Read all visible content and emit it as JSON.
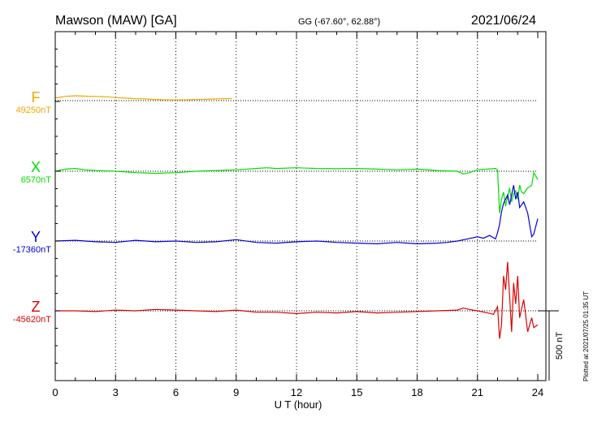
{
  "header": {
    "station": "Mawson (MAW)  [GA]",
    "coords": "GG (-67.60°,  62.88°)",
    "date": "2021/06/24"
  },
  "footer": {
    "plotted": "Plotted at 2021/07/25 01:35 UT"
  },
  "chart_data": {
    "type": "line",
    "xlabel": "U T (hour)",
    "xlim": [
      0,
      24
    ],
    "xticks": [
      0,
      3,
      6,
      9,
      12,
      15,
      18,
      21,
      24
    ],
    "grid": true,
    "scale_label": "500 nT",
    "scale_nT": 500,
    "series": [
      {
        "name": "F",
        "baseline_label": "49250nT",
        "color": "#f0a800",
        "x": [
          0,
          0.5,
          1,
          1.5,
          2,
          2.5,
          3,
          3.5,
          4,
          4.5,
          5,
          5.5,
          6,
          6.5,
          7,
          7.5,
          8,
          8.5,
          8.8
        ],
        "y": [
          20,
          30,
          35,
          32,
          30,
          28,
          22,
          18,
          14,
          12,
          8,
          6,
          5,
          6,
          8,
          10,
          12,
          14,
          15
        ]
      },
      {
        "name": "X",
        "baseline_label": "6570nT",
        "color": "#00dd00",
        "x": [
          0,
          0.5,
          1,
          1.5,
          2,
          3,
          4,
          5,
          6,
          7,
          8,
          9,
          10,
          10.5,
          11,
          12,
          13,
          14,
          15,
          16,
          17,
          18,
          19,
          20,
          20.3,
          20.6,
          21,
          21.5,
          21.9,
          22,
          22.1,
          22.2,
          22.3,
          22.4,
          22.5,
          22.6,
          22.7,
          22.8,
          22.9,
          23,
          23.1,
          23.2,
          23.3,
          23.5,
          23.7,
          23.8,
          24
        ],
        "y": [
          0,
          15,
          20,
          10,
          5,
          0,
          -10,
          -15,
          -10,
          0,
          5,
          10,
          20,
          25,
          20,
          25,
          20,
          18,
          20,
          15,
          10,
          15,
          5,
          0,
          -20,
          -10,
          10,
          15,
          20,
          10,
          -300,
          -200,
          -150,
          -250,
          -180,
          -120,
          -220,
          -160,
          -140,
          -200,
          -100,
          -150,
          -160,
          -120,
          -100,
          -10,
          -60
        ]
      },
      {
        "name": "Y",
        "baseline_label": "-17360nT",
        "color": "#0000dd",
        "x": [
          0,
          1,
          2,
          3,
          4,
          5,
          6,
          7,
          8,
          9,
          10,
          11,
          12,
          13,
          14,
          15,
          16,
          17,
          18,
          19,
          19.5,
          20,
          20.5,
          21,
          21.3,
          21.6,
          21.9,
          22,
          22.1,
          22.2,
          22.3,
          22.5,
          22.6,
          22.8,
          22.9,
          23,
          23.1,
          23.3,
          23.5,
          23.7,
          23.8,
          24
        ],
        "y": [
          0,
          5,
          -5,
          -10,
          5,
          -5,
          0,
          -10,
          -5,
          10,
          -10,
          -15,
          -5,
          0,
          -10,
          -15,
          -20,
          -10,
          -20,
          -15,
          -10,
          0,
          15,
          30,
          20,
          40,
          15,
          60,
          120,
          210,
          270,
          330,
          260,
          400,
          300,
          350,
          240,
          280,
          200,
          30,
          50,
          160
        ]
      },
      {
        "name": "Z",
        "baseline_label": "-45620nT",
        "color": "#dd0000",
        "x": [
          0,
          1,
          2,
          3,
          4,
          5,
          6,
          7,
          8,
          9,
          10,
          11,
          12,
          13,
          14,
          15,
          16,
          17,
          18,
          19,
          20,
          20.3,
          20.6,
          21,
          21.5,
          21.8,
          22,
          22.1,
          22.2,
          22.3,
          22.4,
          22.5,
          22.6,
          22.7,
          22.8,
          22.9,
          23,
          23.1,
          23.3,
          23.5,
          23.7,
          23.8,
          24
        ],
        "y": [
          0,
          0,
          -5,
          5,
          0,
          10,
          5,
          0,
          -5,
          5,
          -10,
          -10,
          -20,
          -10,
          -15,
          -5,
          -15,
          -10,
          -5,
          0,
          5,
          20,
          10,
          0,
          -15,
          -25,
          30,
          -200,
          -100,
          250,
          150,
          350,
          100,
          -150,
          200,
          50,
          250,
          -50,
          80,
          -150,
          -50,
          -120,
          -100
        ]
      }
    ]
  }
}
